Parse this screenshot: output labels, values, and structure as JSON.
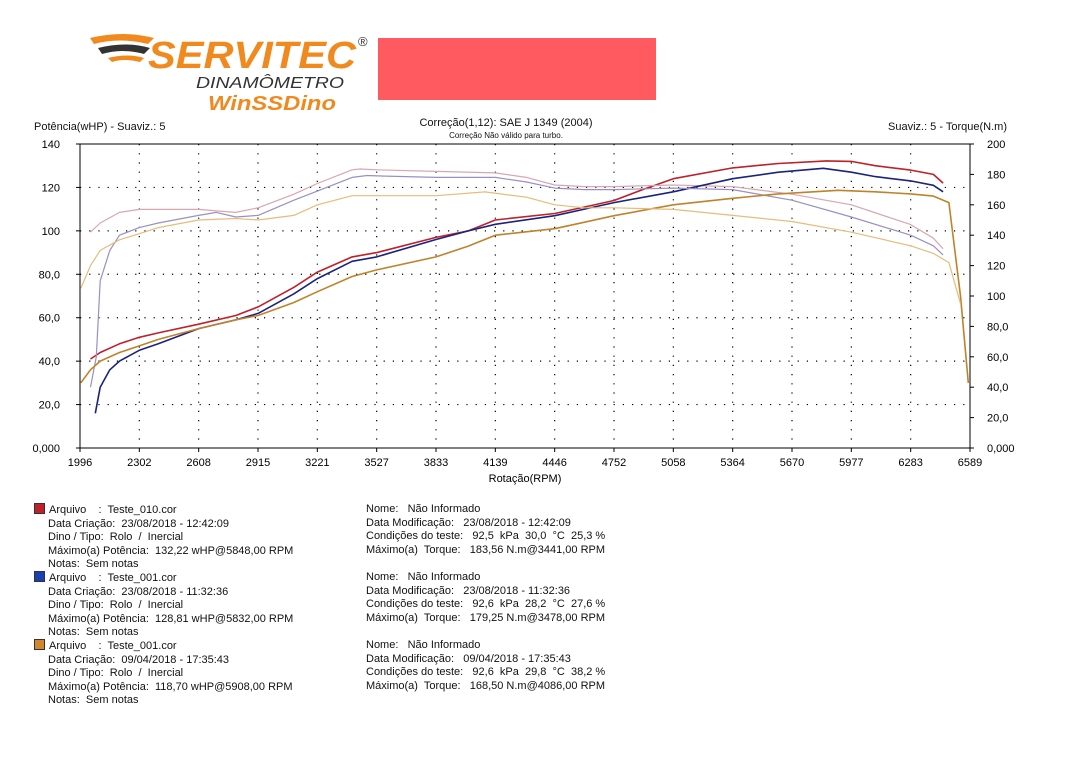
{
  "header": {
    "logo": {
      "brand": "SERVITEC",
      "registered": "®",
      "subtitle": "DINAMÔMETRO",
      "product": "WinSSDino",
      "colors": {
        "brand": "#f08a1e",
        "accent": "#333333"
      }
    },
    "redacted_color": "#ff5a5f",
    "left_label": "Potência(wHP) - Suaviz.: 5",
    "right_label": "Suaviz.: 5 - Torque(N.m)",
    "correction": "Correção(1,12): SAE J 1349 (2004)",
    "correction_note": "Correção Não válido para turbo."
  },
  "chart_data": {
    "type": "line",
    "xlabel": "Rotação(RPM)",
    "ylabel_left": "Potência(wHP)",
    "ylabel_right": "Torque(N.m)",
    "x_ticks": [
      "1996",
      "2302",
      "2608",
      "2915",
      "3221",
      "3527",
      "3833",
      "4139",
      "4446",
      "4752",
      "5058",
      "5364",
      "5670",
      "5977",
      "6283",
      "6589"
    ],
    "y_left_ticks": [
      "0,000",
      "20,0",
      "40,0",
      "60,0",
      "80,0",
      "100",
      "120",
      "140"
    ],
    "y_right_ticks": [
      "0,000",
      "20,0",
      "40,0",
      "60,0",
      "80,0",
      "100",
      "120",
      "140",
      "160",
      "180",
      "200"
    ],
    "xlim": [
      1996,
      6589
    ],
    "ylim_left": [
      0,
      140
    ],
    "ylim_right": [
      0,
      200
    ],
    "grid": true,
    "series": [
      {
        "name": "Teste_010.cor",
        "color": "#c0202a",
        "light": "#d9a6b0",
        "axis": "left",
        "kind": "power",
        "x": [
          2050,
          2100,
          2200,
          2302,
          2400,
          2608,
          2800,
          2915,
          3100,
          3221,
          3400,
          3527,
          3833,
          4000,
          4139,
          4446,
          4600,
          4752,
          4900,
          5058,
          5364,
          5600,
          5848,
          5977,
          6100,
          6283,
          6400,
          6450
        ],
        "y": [
          41,
          44,
          48,
          51,
          53,
          57,
          61,
          65,
          74,
          81,
          88,
          90,
          97,
          100,
          105,
          108,
          111,
          114,
          119,
          124,
          129,
          131,
          132.2,
          132,
          130,
          128,
          126,
          122
        ]
      },
      {
        "name": "Teste_010.cor",
        "color": "#d9a6b0",
        "axis": "right",
        "kind": "torque",
        "x": [
          2050,
          2100,
          2200,
          2302,
          2400,
          2608,
          2700,
          2800,
          2915,
          3100,
          3221,
          3400,
          3441,
          3527,
          3833,
          4139,
          4300,
          4446,
          4600,
          4752,
          5058,
          5364,
          5670,
          5977,
          6283,
          6400,
          6450
        ],
        "y": [
          142,
          148,
          155,
          157,
          157,
          157,
          156,
          155,
          158,
          167,
          174,
          183,
          183.56,
          183,
          182,
          181,
          178,
          173,
          172,
          172,
          173,
          172,
          167,
          160,
          147,
          138,
          131
        ]
      },
      {
        "name": "Teste_001.cor",
        "color": "#1a237e",
        "axis": "left",
        "kind": "power",
        "x": [
          2075,
          2100,
          2150,
          2200,
          2302,
          2400,
          2608,
          2800,
          2915,
          3100,
          3221,
          3400,
          3527,
          3833,
          4000,
          4139,
          4446,
          4600,
          4752,
          5058,
          5364,
          5600,
          5832,
          5977,
          6100,
          6283,
          6400,
          6450
        ],
        "y": [
          16,
          28,
          36,
          40,
          45,
          48,
          55,
          59,
          62,
          71,
          78,
          86,
          88,
          96,
          100,
          103,
          107,
          110,
          113,
          118,
          124,
          127,
          128.8,
          127,
          125,
          123,
          121,
          118
        ]
      },
      {
        "name": "Teste_001.cor",
        "color": "#9a8fc4",
        "axis": "right",
        "kind": "torque",
        "x": [
          2050,
          2080,
          2100,
          2150,
          2200,
          2302,
          2400,
          2608,
          2700,
          2800,
          2915,
          3100,
          3221,
          3400,
          3478,
          3527,
          3833,
          4139,
          4300,
          4446,
          4600,
          4752,
          5058,
          5364,
          5670,
          5977,
          6283,
          6400,
          6450
        ],
        "y": [
          40,
          60,
          110,
          130,
          140,
          145,
          148,
          153,
          155,
          152,
          153,
          163,
          169,
          178,
          179.25,
          179,
          178,
          178,
          175,
          171,
          170,
          170,
          171,
          170,
          163,
          152,
          140,
          133,
          127
        ]
      },
      {
        "name": "Teste_001.cor",
        "color": "#c0822a",
        "axis": "left",
        "kind": "power",
        "x": [
          2000,
          2050,
          2100,
          2200,
          2302,
          2400,
          2608,
          2800,
          2915,
          3100,
          3221,
          3400,
          3527,
          3833,
          4000,
          4139,
          4446,
          4600,
          4752,
          5058,
          5364,
          5600,
          5908,
          6100,
          6283,
          6400,
          6480,
          6540,
          6580
        ],
        "y": [
          30,
          36,
          40,
          44,
          47,
          50,
          55,
          59,
          61,
          67,
          72,
          79,
          82,
          88,
          93,
          98,
          101,
          104,
          107,
          112,
          115,
          117,
          118.7,
          118,
          117,
          116,
          113,
          70,
          30
        ]
      },
      {
        "name": "Teste_001.cor",
        "color": "#e6bc7a",
        "axis": "right",
        "kind": "torque",
        "x": [
          2000,
          2050,
          2100,
          2200,
          2302,
          2400,
          2608,
          2800,
          2915,
          3100,
          3221,
          3400,
          3527,
          3833,
          4086,
          4300,
          4446,
          4600,
          4752,
          5058,
          5364,
          5670,
          5977,
          6283,
          6400,
          6480,
          6540
        ],
        "y": [
          105,
          120,
          130,
          137,
          141,
          145,
          150,
          151,
          150,
          153,
          160,
          166,
          166,
          166,
          168.5,
          165,
          160,
          158,
          158,
          157,
          153,
          149,
          142,
          133,
          128,
          122,
          95
        ]
      }
    ]
  },
  "tests": [
    {
      "color": "#c0202a",
      "file_label": "Arquivo",
      "file": "Teste_010.cor",
      "created_label": "Data Criação:",
      "created": "23/08/2018 - 12:42:09",
      "dino_label": "Dino / Tipo:",
      "dino": "Rolo  /  Inercial",
      "power_label": "Máximo(a) Potência:",
      "power": "132,22 wHP@5848,00 RPM",
      "notes_label": "Notas:",
      "notes": "Sem notas",
      "name_label": "Nome:",
      "name": "Não Informado",
      "modified_label": "Data Modificação:",
      "modified": "23/08/2018 - 12:42:09",
      "cond_label": "Condições do teste:",
      "cond": "92,5  kPa  30,0  °C  25,3 %",
      "torque_label": "Máximo(a)  Torque:",
      "torque": "183,56 N.m@3441,00 RPM"
    },
    {
      "color": "#1a3fb0",
      "file_label": "Arquivo",
      "file": "Teste_001.cor",
      "created_label": "Data Criação:",
      "created": "23/08/2018 - 11:32:36",
      "dino_label": "Dino / Tipo:",
      "dino": "Rolo  /  Inercial",
      "power_label": "Máximo(a) Potência:",
      "power": "128,81 wHP@5832,00 RPM",
      "notes_label": "Notas:",
      "notes": "Sem notas",
      "name_label": "Nome:",
      "name": "Não Informado",
      "modified_label": "Data Modificação:",
      "modified": "23/08/2018 - 11:32:36",
      "cond_label": "Condições do teste:",
      "cond": "92,6  kPa  28,2  °C  27,6 %",
      "torque_label": "Máximo(a)  Torque:",
      "torque": "179,25 N.m@3478,00 RPM"
    },
    {
      "color": "#d2862e",
      "file_label": "Arquivo",
      "file": "Teste_001.cor",
      "created_label": "Data Criação:",
      "created": "09/04/2018 - 17:35:43",
      "dino_label": "Dino / Tipo:",
      "dino": "Rolo  /  Inercial",
      "power_label": "Máximo(a) Potência:",
      "power": "118,70 wHP@5908,00 RPM",
      "notes_label": "Notas:",
      "notes": "Sem notas",
      "name_label": "Nome:",
      "name": "Não Informado",
      "modified_label": "Data Modificação:",
      "modified": "09/04/2018 - 17:35:43",
      "cond_label": "Condições do teste:",
      "cond": "92,6  kPa  29,8  °C  38,2 %",
      "torque_label": "Máximo(a)  Torque:",
      "torque": "168,50 N.m@4086,00 RPM"
    }
  ]
}
